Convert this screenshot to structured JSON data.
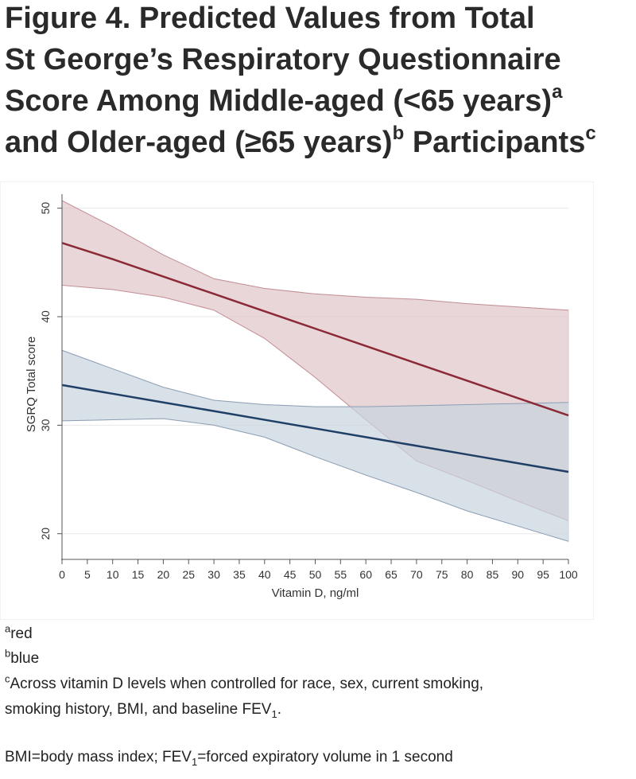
{
  "figure": {
    "title_lines": [
      {
        "text": "Figure 4. Predicted Values from Total",
        "sup": ""
      },
      {
        "text": "St George’s Respiratory Questionnaire",
        "sup": ""
      },
      {
        "text": "Score Among Middle-aged (<65 years)",
        "sup": "a"
      },
      {
        "text": "and Older-aged (≥65 years)",
        "sup": "b",
        "text_after": " Participants",
        "sup_after": "c"
      }
    ]
  },
  "chart_data": {
    "type": "line",
    "xlabel": "Vitamin D, ng/ml",
    "ylabel": "SGRQ Total score",
    "xlim": [
      0,
      100
    ],
    "ylim": [
      18,
      51
    ],
    "x_ticks": [
      0,
      5,
      10,
      15,
      20,
      25,
      30,
      35,
      40,
      45,
      50,
      55,
      60,
      65,
      70,
      75,
      80,
      85,
      90,
      95,
      100
    ],
    "y_ticks": [
      20,
      30,
      40,
      50
    ],
    "grid": "horizontal",
    "series": [
      {
        "color": "#8b2a36",
        "band_color": "#dfc5c8",
        "x": [
          0,
          10,
          20,
          30,
          40,
          50,
          60,
          70,
          80,
          90,
          100
        ],
        "y": [
          46.8,
          45.3,
          43.7,
          42.1,
          40.5,
          38.9,
          37.3,
          35.7,
          34.1,
          32.5,
          30.9
        ],
        "lower": [
          42.9,
          42.5,
          41.8,
          40.6,
          38.0,
          34.4,
          30.5,
          26.7,
          24.9,
          23.0,
          21.2
        ],
        "upper": [
          50.7,
          48.3,
          45.7,
          43.5,
          42.6,
          42.1,
          41.8,
          41.6,
          41.2,
          40.9,
          40.6
        ]
      },
      {
        "color": "#1f3f66",
        "band_color": "#c8d3de",
        "x": [
          0,
          10,
          20,
          30,
          40,
          50,
          60,
          70,
          80,
          90,
          100
        ],
        "y": [
          33.7,
          32.9,
          32.1,
          31.3,
          30.5,
          29.7,
          28.9,
          28.1,
          27.3,
          26.5,
          25.7
        ],
        "lower": [
          30.4,
          30.5,
          30.6,
          30.0,
          28.9,
          27.1,
          25.4,
          23.8,
          22.1,
          20.7,
          19.3
        ],
        "upper": [
          36.9,
          35.2,
          33.5,
          32.3,
          31.9,
          31.7,
          31.7,
          31.8,
          31.9,
          32.0,
          32.1
        ]
      }
    ]
  },
  "footnotes": {
    "a": {
      "sup": "a",
      "text": "red"
    },
    "b": {
      "sup": "b",
      "text": "blue"
    },
    "c": {
      "sup": "c",
      "line1": "Across vitamin D levels when controlled for race, sex, current smoking,",
      "line2_pre": "smoking history, BMI, and baseline FEV",
      "line2_sub": "1",
      "line2_post": "."
    },
    "abbrev": {
      "pre": "BMI=body mass index; FEV",
      "sub": "1",
      "post": "=forced expiratory volume in 1 second"
    }
  }
}
